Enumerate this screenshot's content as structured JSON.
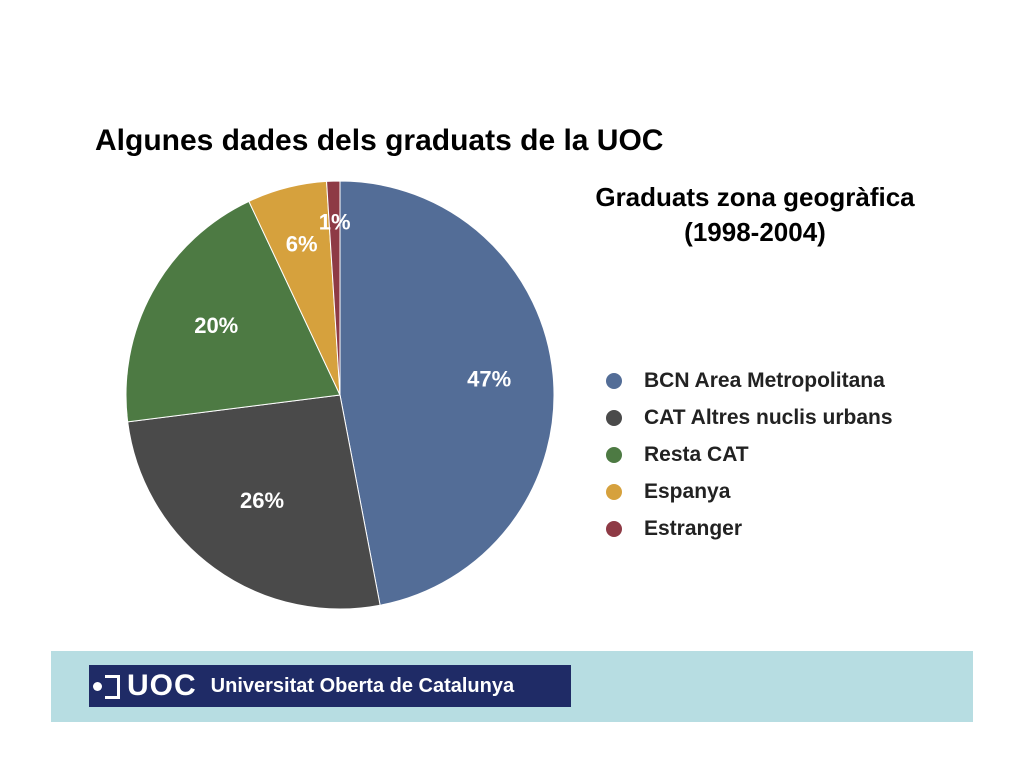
{
  "slide": {
    "title": "Algunes dades dels graduats de la UOC"
  },
  "chart_data": {
    "type": "pie",
    "title": "Graduats zona geogràfica",
    "subtitle": "(1998-2004)",
    "categories": [
      "BCN Area Metropolitana",
      "CAT Altres nuclis urbans",
      "Resta CAT",
      "Espanya",
      "Estranger"
    ],
    "values": [
      47,
      26,
      20,
      6,
      1
    ],
    "labels": [
      "47%",
      "26%",
      "20%",
      "6%",
      "1%"
    ],
    "colors": [
      "#536d97",
      "#4a4a4a",
      "#4d7a43",
      "#d6a13d",
      "#8e3a45"
    ],
    "legend": "right"
  },
  "footer": {
    "logo_abbr": "UOC",
    "logo_name": "Universitat Oberta de Catalunya"
  }
}
